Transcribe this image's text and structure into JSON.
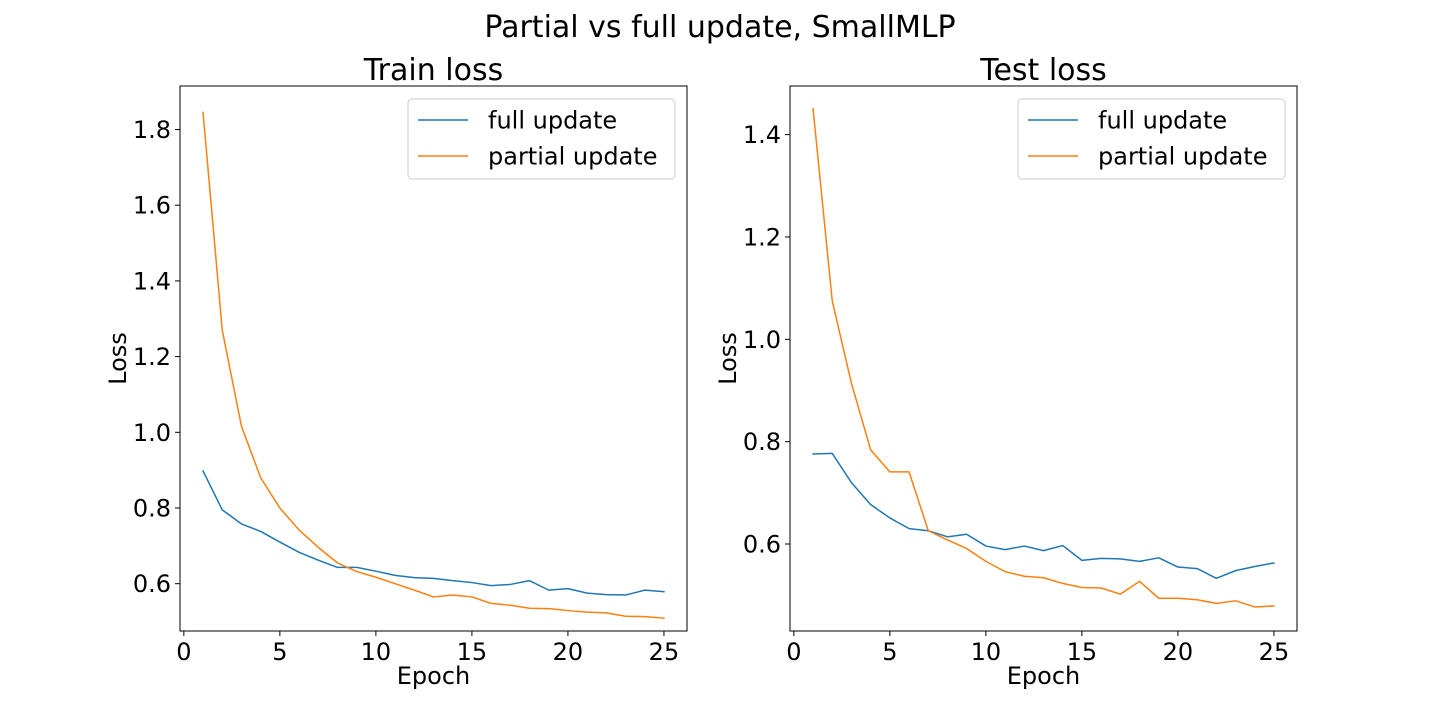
{
  "figure": {
    "suptitle": "Partial vs full update, SmallMLP"
  },
  "colors": {
    "full update": "#1f77b4",
    "partial update": "#ff7f0e",
    "axes": "#000000",
    "background": "#ffffff"
  },
  "chart_data": [
    {
      "type": "line",
      "title": "Train loss",
      "xlabel": "Epoch",
      "ylabel": "Loss",
      "xlim": [
        -0.2,
        26.2
      ],
      "ylim": [
        0.475,
        1.915
      ],
      "xticks": [
        0,
        5,
        10,
        15,
        20,
        25
      ],
      "yticks": [
        0.6,
        0.8,
        1.0,
        1.2,
        1.4,
        1.6,
        1.8
      ],
      "ytick_labels": [
        "0.6",
        "0.8",
        "1.0",
        "1.2",
        "1.4",
        "1.6",
        "1.8"
      ],
      "grid": false,
      "legend": "upper right",
      "x": [
        1,
        2,
        3,
        4,
        5,
        6,
        7,
        8,
        9,
        10,
        11,
        12,
        13,
        14,
        15,
        16,
        17,
        18,
        19,
        20,
        21,
        22,
        23,
        24,
        25
      ],
      "series": [
        {
          "name": "full update",
          "values": [
            0.898,
            0.795,
            0.758,
            0.738,
            0.71,
            0.683,
            0.662,
            0.643,
            0.643,
            0.633,
            0.622,
            0.616,
            0.614,
            0.608,
            0.603,
            0.595,
            0.598,
            0.608,
            0.583,
            0.587,
            0.575,
            0.571,
            0.57,
            0.583,
            0.579
          ]
        },
        {
          "name": "partial update",
          "values": [
            1.845,
            1.27,
            1.016,
            0.88,
            0.8,
            0.742,
            0.696,
            0.655,
            0.632,
            0.617,
            0.6,
            0.583,
            0.565,
            0.57,
            0.565,
            0.548,
            0.543,
            0.535,
            0.534,
            0.529,
            0.525,
            0.523,
            0.514,
            0.513,
            0.509
          ]
        }
      ]
    },
    {
      "type": "line",
      "title": "Test loss",
      "xlabel": "Epoch",
      "ylabel": "Loss",
      "xlim": [
        -0.2,
        26.2
      ],
      "ylim": [
        0.43,
        1.495
      ],
      "xticks": [
        0,
        5,
        10,
        15,
        20,
        25
      ],
      "yticks": [
        0.6,
        0.8,
        1.0,
        1.2,
        1.4
      ],
      "ytick_labels": [
        "0.6",
        "0.8",
        "1.0",
        "1.2",
        "1.4"
      ],
      "grid": false,
      "legend": "upper right",
      "x": [
        1,
        2,
        3,
        4,
        5,
        6,
        7,
        8,
        9,
        10,
        11,
        12,
        13,
        14,
        15,
        16,
        17,
        18,
        19,
        20,
        21,
        22,
        23,
        24,
        25
      ],
      "series": [
        {
          "name": "full update",
          "values": [
            0.776,
            0.777,
            0.72,
            0.677,
            0.651,
            0.63,
            0.626,
            0.614,
            0.619,
            0.596,
            0.589,
            0.596,
            0.587,
            0.597,
            0.568,
            0.572,
            0.571,
            0.566,
            0.573,
            0.555,
            0.552,
            0.533,
            0.548,
            0.556,
            0.563
          ]
        },
        {
          "name": "partial update",
          "values": [
            1.451,
            1.075,
            0.914,
            0.784,
            0.741,
            0.741,
            0.626,
            0.608,
            0.591,
            0.566,
            0.546,
            0.537,
            0.534,
            0.523,
            0.515,
            0.514,
            0.502,
            0.527,
            0.494,
            0.494,
            0.491,
            0.484,
            0.489,
            0.477,
            0.479
          ]
        }
      ]
    }
  ]
}
